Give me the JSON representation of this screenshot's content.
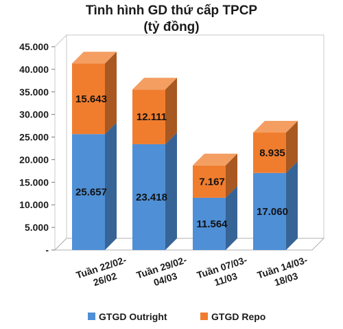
{
  "chart_data": {
    "type": "bar",
    "stacked": true,
    "three_d": true,
    "title": "Tình hình GD thứ cấp TPCP",
    "subtitle": "(tỷ đồng)",
    "categories": [
      [
        "Tuần 22/02-",
        "26/02"
      ],
      [
        "Tuần 29/02-",
        "04/03"
      ],
      [
        "Tuần 07/03-",
        "11/03"
      ],
      [
        "Tuần 14/03-",
        "18/03"
      ]
    ],
    "series": [
      {
        "name": "GTGD Outright",
        "values": [
          25657,
          23418,
          11564,
          17060
        ],
        "labels": [
          "25.657",
          "23.418",
          "11.564",
          "17.060"
        ],
        "color": "#4f8fd6"
      },
      {
        "name": "GTGD Repo",
        "values": [
          15643,
          12111,
          7167,
          8935
        ],
        "labels": [
          "15.643",
          "12.111",
          "7.167",
          "8.935"
        ],
        "color": "#f07d2e"
      }
    ],
    "ylim": [
      0,
      45000
    ],
    "yticks": [
      {
        "value": 45000,
        "label": "45.000"
      },
      {
        "value": 40000,
        "label": "40.000"
      },
      {
        "value": 35000,
        "label": "35.000"
      },
      {
        "value": 30000,
        "label": "30.000"
      },
      {
        "value": 25000,
        "label": "25.000"
      },
      {
        "value": 20000,
        "label": "20.000"
      },
      {
        "value": 15000,
        "label": "15.000"
      },
      {
        "value": 10000,
        "label": "10.000"
      },
      {
        "value": 5000,
        "label": "5.000"
      },
      {
        "value": 0,
        "label": "-"
      }
    ],
    "grid": false,
    "legend_position": "bottom"
  }
}
